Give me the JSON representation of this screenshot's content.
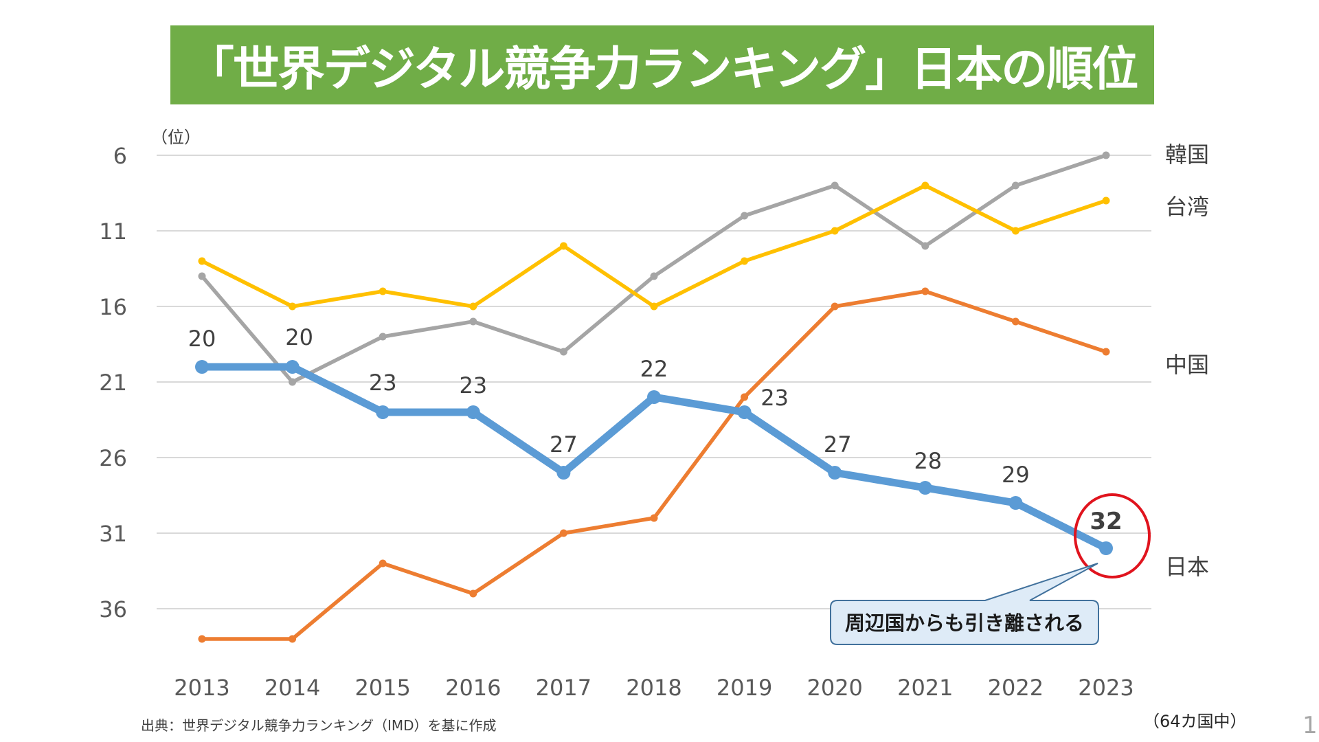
{
  "title": "「世界デジタル競争力ランキング」日本の順位",
  "chart_data": {
    "type": "line",
    "title": "「世界デジタル競争力ランキング」日本の順位",
    "ylabel": "（位）",
    "xlabel": "",
    "y_inverted": true,
    "ylim": [
      6,
      39
    ],
    "yticks": [
      6,
      11,
      16,
      21,
      26,
      31,
      36
    ],
    "grid": true,
    "x": [
      "2013",
      "2014",
      "2015",
      "2016",
      "2017",
      "2018",
      "2019",
      "2020",
      "2021",
      "2022",
      "2023"
    ],
    "series": [
      {
        "name": "韓国",
        "color": "#a5a5a5",
        "values": [
          14,
          21,
          18,
          17,
          19,
          14,
          10,
          8,
          12,
          8,
          6
        ],
        "data_labels": false
      },
      {
        "name": "台湾",
        "color": "#ffc000",
        "values": [
          13,
          16,
          15,
          16,
          12,
          16,
          13,
          11,
          8,
          11,
          9
        ],
        "data_labels": false
      },
      {
        "name": "中国",
        "color": "#ed7d31",
        "values": [
          38,
          38,
          33,
          35,
          31,
          30,
          22,
          16,
          15,
          17,
          19
        ],
        "data_labels": false
      },
      {
        "name": "日本",
        "color": "#5b9bd5",
        "values": [
          20,
          20,
          23,
          23,
          27,
          22,
          23,
          27,
          28,
          29,
          32
        ],
        "data_labels": true
      }
    ],
    "legend": "right-end labels",
    "annotations": [
      {
        "text": "周辺国からも引き離される",
        "target": "日本 2023",
        "highlight_color": "#e0141e"
      }
    ]
  },
  "source": "出典：世界デジタル競争力ランキング（IMD）を基に作成",
  "note": "（64カ国中）",
  "page_number": "1"
}
